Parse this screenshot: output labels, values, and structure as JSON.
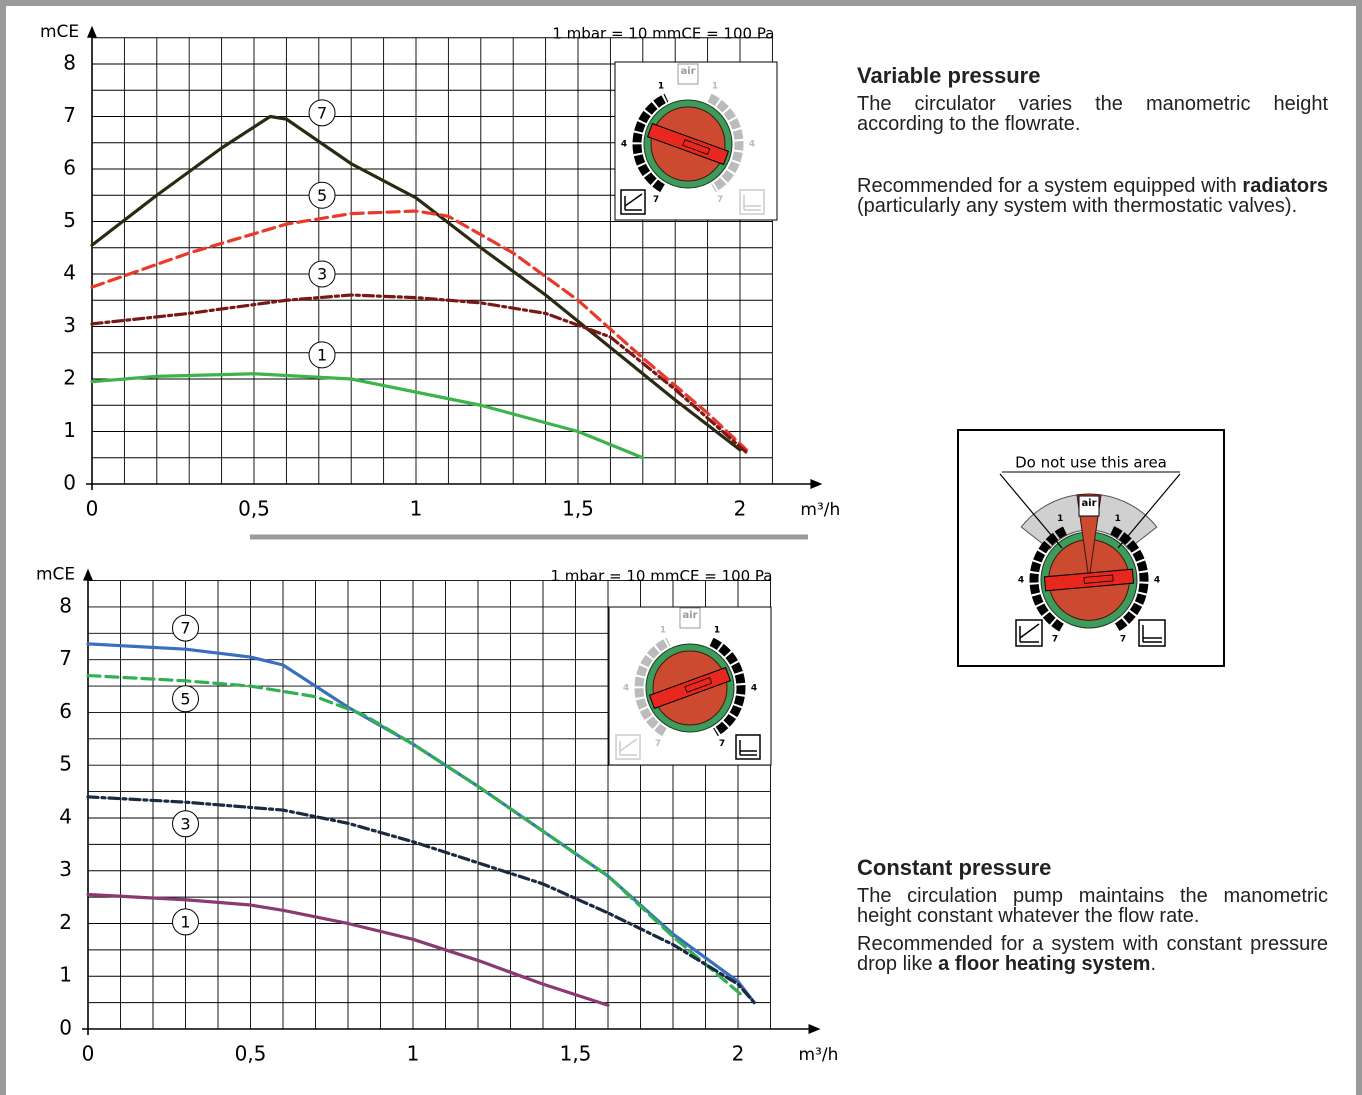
{
  "chart_data": [
    {
      "type": "line",
      "note": "1 mbar = 10 mmCE = 100 Pa",
      "ylabel": "mCE",
      "xlabel": "m³/h",
      "xlim": [
        0,
        2.1
      ],
      "ylim": [
        0,
        8.5
      ],
      "xticks": [
        0,
        {
          "value": 0.5,
          "label": "0,5"
        },
        1,
        {
          "value": 1.5,
          "label": "1,5"
        },
        2
      ],
      "yticks": [
        0,
        1,
        2,
        3,
        4,
        5,
        6,
        7,
        8
      ],
      "grid": true,
      "xgrid": [
        0,
        0.1,
        0.2,
        0.3,
        0.4,
        0.5,
        0.6,
        0.7,
        0.8,
        0.9,
        1,
        1.1,
        1.2,
        1.3,
        1.4,
        1.5,
        1.6,
        1.7,
        1.8,
        1.9,
        2,
        2.1
      ],
      "ygrid": [
        0,
        0.5,
        1,
        1.5,
        2,
        2.5,
        3,
        3.5,
        4,
        4.5,
        5,
        5.5,
        6,
        6.5,
        7,
        7.5,
        8,
        8.5
      ],
      "series": [
        {
          "name": "7",
          "color": "#2a2a12",
          "dash": "solid",
          "x": [
            0,
            0.2,
            0.4,
            0.55,
            0.6,
            0.8,
            1.0,
            1.2,
            1.4,
            1.6,
            1.8,
            2.0
          ],
          "values": [
            4.55,
            5.5,
            6.4,
            7.0,
            6.95,
            6.1,
            5.45,
            4.5,
            3.6,
            2.6,
            1.6,
            0.65
          ]
        },
        {
          "name": "5",
          "color": "#e8392a",
          "dash": "dashed",
          "x": [
            0,
            0.3,
            0.6,
            0.8,
            1.0,
            1.1,
            1.3,
            1.5,
            1.7,
            1.9,
            2.02
          ],
          "values": [
            3.75,
            4.4,
            4.95,
            5.15,
            5.2,
            5.1,
            4.4,
            3.5,
            2.4,
            1.35,
            0.65
          ]
        },
        {
          "name": "3",
          "color": "#7a1818",
          "dash": "dashdot",
          "x": [
            0,
            0.3,
            0.6,
            0.8,
            1.0,
            1.2,
            1.4,
            1.6,
            1.8,
            2.02
          ],
          "values": [
            3.05,
            3.25,
            3.5,
            3.6,
            3.55,
            3.45,
            3.25,
            2.8,
            1.8,
            0.6
          ]
        },
        {
          "name": "1",
          "color": "#3cb44b",
          "dash": "solid",
          "x": [
            0,
            0.2,
            0.5,
            0.8,
            1.0,
            1.2,
            1.5,
            1.7
          ],
          "values": [
            1.95,
            2.05,
            2.1,
            2.0,
            1.75,
            1.5,
            1.0,
            0.5
          ]
        }
      ]
    },
    {
      "type": "line",
      "note": "1 mbar = 10 mmCE = 100 Pa",
      "ylabel": "mCE",
      "xlabel": "m³/h",
      "xlim": [
        0,
        2.1
      ],
      "ylim": [
        0,
        8.5
      ],
      "xticks": [
        0,
        {
          "value": 0.5,
          "label": "0,5"
        },
        1,
        {
          "value": 1.5,
          "label": "1,5"
        },
        2
      ],
      "yticks": [
        0,
        1,
        2,
        3,
        4,
        5,
        6,
        7,
        8
      ],
      "grid": true,
      "xgrid": [
        0,
        0.1,
        0.2,
        0.3,
        0.4,
        0.5,
        0.6,
        0.7,
        0.8,
        0.9,
        1,
        1.1,
        1.2,
        1.3,
        1.4,
        1.5,
        1.6,
        1.7,
        1.8,
        1.9,
        2,
        2.1
      ],
      "ygrid": [
        0,
        0.5,
        1,
        1.5,
        2,
        2.5,
        3,
        3.5,
        4,
        4.5,
        5,
        5.5,
        6,
        6.5,
        7,
        7.5,
        8,
        8.5
      ],
      "series": [
        {
          "name": "7",
          "color": "#3a6fc0",
          "dash": "solid",
          "x": [
            0,
            0.3,
            0.5,
            0.6,
            0.7,
            0.8,
            1.0,
            1.2,
            1.4,
            1.6,
            1.8,
            2.0,
            2.05
          ],
          "values": [
            7.3,
            7.2,
            7.05,
            6.9,
            6.5,
            6.1,
            5.4,
            4.6,
            3.75,
            2.9,
            1.8,
            0.9,
            0.5
          ]
        },
        {
          "name": "5",
          "color": "#30b050",
          "dash": "dashed",
          "x": [
            0,
            0.3,
            0.5,
            0.7,
            0.85,
            1.0,
            1.2,
            1.4,
            1.6,
            1.8,
            2.02
          ],
          "values": [
            6.7,
            6.6,
            6.5,
            6.3,
            5.95,
            5.4,
            4.6,
            3.75,
            2.9,
            1.75,
            0.6
          ]
        },
        {
          "name": "3",
          "color": "#1a2a40",
          "dash": "dashdot",
          "x": [
            0,
            0.3,
            0.6,
            0.8,
            1.0,
            1.2,
            1.4,
            1.6,
            1.8,
            2.0,
            2.05
          ],
          "values": [
            4.4,
            4.3,
            4.15,
            3.9,
            3.55,
            3.15,
            2.75,
            2.2,
            1.6,
            0.85,
            0.5
          ]
        },
        {
          "name": "1",
          "color": "#8a3a70",
          "dash": "solid",
          "x": [
            0,
            0.3,
            0.5,
            0.6,
            0.8,
            1.0,
            1.2,
            1.4,
            1.6
          ],
          "values": [
            2.55,
            2.45,
            2.35,
            2.25,
            2.0,
            1.7,
            1.3,
            0.85,
            0.45
          ]
        }
      ]
    }
  ],
  "dial": {
    "air": "air",
    "marks": [
      "1",
      "4",
      "7"
    ],
    "warning": "Do not use this area"
  },
  "sections": [
    {
      "title": "Variable pressure",
      "paragraphs": [
        [
          {
            "text": "The circulator varies the manometric height according to the flowrate."
          }
        ],
        [
          {
            "text": "Recommended for a system equipped with "
          },
          {
            "text": "radiators",
            "bold": true
          },
          {
            "text": " (particularly any system with thermostatic valves)."
          }
        ]
      ]
    },
    {
      "title": "Constant pressure",
      "paragraphs": [
        [
          {
            "text": "The circulation pump maintains the manometric height constant whatever the flow rate."
          }
        ],
        [
          {
            "text": "Recommended for a system with constant pressure drop like "
          },
          {
            "text": "a floor heating system",
            "bold": true
          },
          {
            "text": "."
          }
        ]
      ]
    }
  ]
}
